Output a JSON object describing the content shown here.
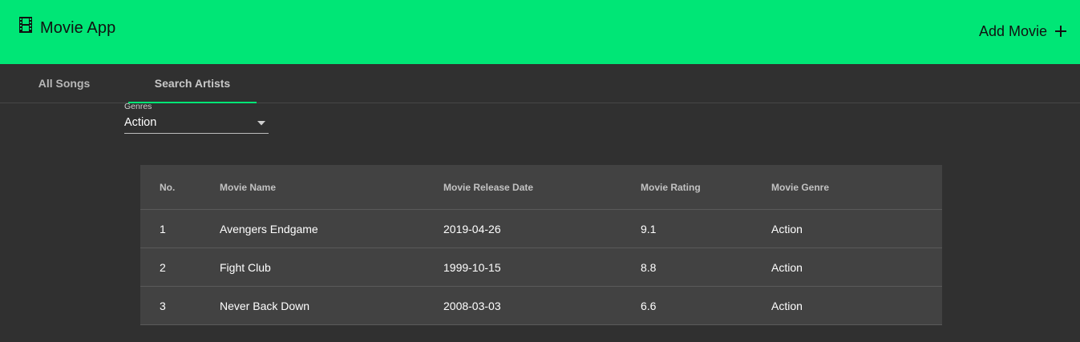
{
  "toolbar": {
    "title": "Movie App",
    "add_label": "Add Movie",
    "brand_color": "#00e676"
  },
  "tabs": [
    {
      "label": "All Songs",
      "active": false
    },
    {
      "label": "Search Artists",
      "active": true
    }
  ],
  "filter": {
    "label": "Genres",
    "value": "Action"
  },
  "table": {
    "headers": [
      "No.",
      "Movie Name",
      "Movie Release Date",
      "Movie Rating",
      "Movie Genre"
    ],
    "rows": [
      [
        "1",
        "Avengers Endgame",
        "2019-04-26",
        "9.1",
        "Action"
      ],
      [
        "2",
        "Fight Club",
        "1999-10-15",
        "8.8",
        "Action"
      ],
      [
        "3",
        "Never Back Down",
        "2008-03-03",
        "6.6",
        "Action"
      ]
    ]
  }
}
